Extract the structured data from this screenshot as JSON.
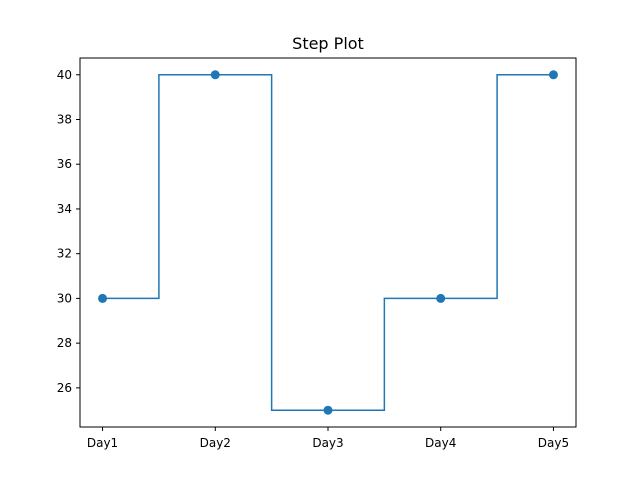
{
  "chart_data": {
    "type": "line",
    "drawstyle": "steps-mid",
    "title": "Step Plot",
    "xlabel": "",
    "ylabel": "",
    "categories": [
      "Day1",
      "Day2",
      "Day3",
      "Day4",
      "Day5"
    ],
    "series": [
      {
        "values": [
          30,
          40,
          25,
          30,
          40
        ],
        "color": "#1f77b4",
        "marker": "circle"
      }
    ],
    "ylim": [
      24.25,
      40.75
    ],
    "yticks": [
      26,
      28,
      30,
      32,
      34,
      36,
      38,
      40
    ],
    "grid": false,
    "legend": "none"
  }
}
